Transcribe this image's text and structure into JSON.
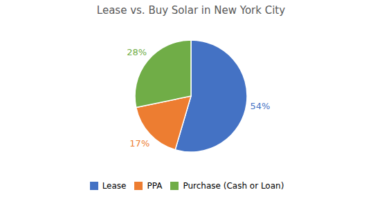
{
  "chart_data": {
    "type": "pie",
    "title": "Lease vs. Buy Solar in New York City",
    "categories": [
      "Lease",
      "PPA",
      "Purchase (Cash or Loan)"
    ],
    "values": [
      54,
      17,
      28
    ],
    "value_labels": [
      "54%",
      "17%",
      "28%"
    ],
    "colors": [
      "#4472C4",
      "#ED7D31",
      "#70AD47"
    ],
    "data_labels": true,
    "legend": "bottom"
  }
}
